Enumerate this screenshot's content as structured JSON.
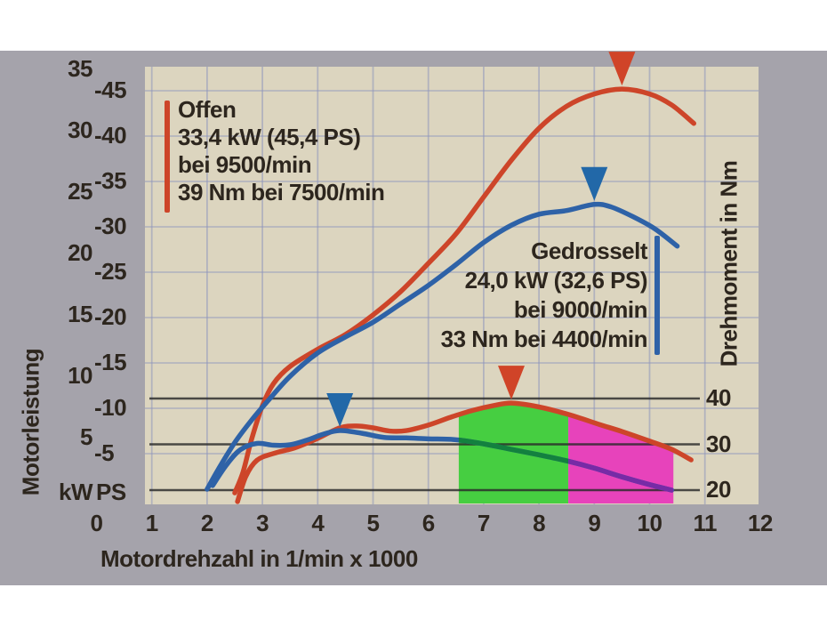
{
  "axes": {
    "x": {
      "title": "Motordrehzahl in 1/min x 1000",
      "ticks": [
        0,
        1,
        2,
        3,
        4,
        5,
        6,
        7,
        8,
        9,
        10,
        11,
        12
      ]
    },
    "left_power": {
      "title": "Motorleistung",
      "kw_unit": "kW",
      "ps_unit": "PS",
      "kw_ticks": [
        35,
        30,
        25,
        20,
        15,
        10,
        5
      ],
      "ps_ticks": [
        "-45",
        "-40",
        "-35",
        "-30",
        "-25",
        "-20",
        "-15",
        "-10",
        "-5"
      ]
    },
    "right_torque": {
      "title": "Drehmoment in Nm",
      "ticks": [
        40,
        30,
        20
      ]
    }
  },
  "legend_offen": {
    "lines": [
      "Offen",
      "33,4 kW (45,4 PS)",
      "bei 9500/min",
      "39 Nm bei 7500/min"
    ],
    "bar_color": "#cd4529"
  },
  "legend_gedrosselt": {
    "lines": [
      "Gedrosselt",
      "24,0 kW (32,6 PS)",
      "bei 9000/min",
      "33 Nm bei 4400/min"
    ],
    "bar_color": "#2e62a7"
  },
  "colors": {
    "curve_offen": "#cd4529",
    "curve_gedrosselt": "#2e62a7",
    "torque_over_green": "#13813f",
    "torque_over_magenta": "#772ba6",
    "band_green": "#46ce41",
    "band_magenta": "#e743bb",
    "photo_bg": "#a5a3ab",
    "plot_bg": "#dcd5bf",
    "grid": "#8e96bd",
    "line_black": "#2a2a2a",
    "marker_red": "#d04428",
    "marker_blue": "#2268a8",
    "text": "#2d261e"
  },
  "chart_data": {
    "type": "line",
    "xlabel": "Motordrehzahl in 1/min x 1000",
    "x_range": [
      0,
      12
    ],
    "left_axis": {
      "label": "Motorleistung",
      "units": [
        "kW",
        "PS"
      ],
      "kw_range": [
        0,
        35
      ],
      "ps_range": [
        0,
        45
      ]
    },
    "right_axis": {
      "label": "Drehmoment in Nm",
      "nm_ticks": [
        40,
        30,
        20
      ]
    },
    "grid": true,
    "series": [
      {
        "name": "Offen Leistung",
        "axis": "kW",
        "color": "#cd4529",
        "points": [
          [
            2.5,
            0.5
          ],
          [
            2.65,
            2.2
          ],
          [
            2.8,
            4.8
          ],
          [
            3.0,
            7.6
          ],
          [
            3.2,
            9.4
          ],
          [
            3.5,
            10.8
          ],
          [
            4.0,
            12.2
          ],
          [
            4.5,
            13.4
          ],
          [
            5.0,
            15.0
          ],
          [
            5.5,
            16.9
          ],
          [
            6.0,
            19.2
          ],
          [
            6.5,
            21.6
          ],
          [
            7.0,
            24.6
          ],
          [
            7.5,
            27.6
          ],
          [
            8.0,
            30.2
          ],
          [
            8.5,
            32.0
          ],
          [
            9.0,
            33.0
          ],
          [
            9.5,
            33.4
          ],
          [
            10.0,
            33.0
          ],
          [
            10.4,
            32.1
          ],
          [
            10.8,
            30.6
          ]
        ]
      },
      {
        "name": "Gedrosselt Leistung",
        "axis": "kW",
        "color": "#2e62a7",
        "points": [
          [
            2.0,
            0.8
          ],
          [
            2.2,
            2.4
          ],
          [
            2.5,
            4.6
          ],
          [
            2.8,
            6.4
          ],
          [
            3.1,
            8.0
          ],
          [
            3.5,
            10.0
          ],
          [
            4.0,
            11.9
          ],
          [
            4.5,
            13.2
          ],
          [
            5.0,
            14.4
          ],
          [
            5.5,
            15.9
          ],
          [
            6.0,
            17.4
          ],
          [
            6.5,
            19.1
          ],
          [
            7.0,
            20.9
          ],
          [
            7.5,
            22.3
          ],
          [
            8.0,
            23.2
          ],
          [
            8.5,
            23.5
          ],
          [
            9.0,
            24.0
          ],
          [
            9.3,
            23.8
          ],
          [
            9.7,
            23.0
          ],
          [
            10.1,
            22.0
          ],
          [
            10.5,
            20.6
          ]
        ]
      },
      {
        "name": "Offen Drehmoment",
        "axis": "Nm",
        "color": "#cd4529",
        "points": [
          [
            2.55,
            17.5
          ],
          [
            2.7,
            23.0
          ],
          [
            2.9,
            26.5
          ],
          [
            3.2,
            28.0
          ],
          [
            3.6,
            29.3
          ],
          [
            4.0,
            31.3
          ],
          [
            4.4,
            33.6
          ],
          [
            4.7,
            34.0
          ],
          [
            5.0,
            33.6
          ],
          [
            5.3,
            32.9
          ],
          [
            5.6,
            33.0
          ],
          [
            6.0,
            34.2
          ],
          [
            6.4,
            35.9
          ],
          [
            6.8,
            37.4
          ],
          [
            7.2,
            38.5
          ],
          [
            7.5,
            39.0
          ],
          [
            7.9,
            38.4
          ],
          [
            8.3,
            37.3
          ],
          [
            8.7,
            35.9
          ],
          [
            9.1,
            34.3
          ],
          [
            9.5,
            32.8
          ],
          [
            10.0,
            30.7
          ],
          [
            10.4,
            28.9
          ],
          [
            10.75,
            26.6
          ]
        ]
      },
      {
        "name": "Gedrosselt Drehmoment",
        "axis": "Nm",
        "color": "#2e62a7",
        "points": [
          [
            2.1,
            21.0
          ],
          [
            2.35,
            25.5
          ],
          [
            2.6,
            28.8
          ],
          [
            2.9,
            30.2
          ],
          [
            3.2,
            29.8
          ],
          [
            3.5,
            29.9
          ],
          [
            3.8,
            30.9
          ],
          [
            4.1,
            32.2
          ],
          [
            4.4,
            33.0
          ],
          [
            4.8,
            32.4
          ],
          [
            5.2,
            31.5
          ],
          [
            5.6,
            31.4
          ],
          [
            6.0,
            31.2
          ],
          [
            6.5,
            31.0
          ],
          [
            7.0,
            30.1
          ],
          [
            7.5,
            28.9
          ],
          [
            8.0,
            27.7
          ],
          [
            8.5,
            26.4
          ],
          [
            9.0,
            24.8
          ],
          [
            9.5,
            22.9
          ],
          [
            10.0,
            21.2
          ],
          [
            10.4,
            20.0
          ]
        ]
      }
    ],
    "peak_markers": [
      {
        "label": "offen-power-peak",
        "shape": "triangle-down",
        "color": "#d04428",
        "rpm": 9.5,
        "axis": "kW",
        "value": 33.4
      },
      {
        "label": "gedrosselt-power-peak",
        "shape": "triangle-down",
        "color": "#2268a8",
        "rpm": 9.0,
        "axis": "kW",
        "value": 24.0
      },
      {
        "label": "offen-torque-peak",
        "shape": "triangle-down",
        "color": "#d04428",
        "rpm": 7.5,
        "axis": "Nm",
        "value": 39
      },
      {
        "label": "gedrosselt-torque-peak",
        "shape": "triangle-down",
        "color": "#2268a8",
        "rpm": 4.4,
        "axis": "Nm",
        "value": 33
      }
    ],
    "bands": [
      {
        "label": "green-band",
        "color": "#46ce41",
        "from_rpm": 6.55,
        "to_rpm": 8.53,
        "under_series": "Offen Drehmoment"
      },
      {
        "label": "magenta-band",
        "color": "#e743bb",
        "from_rpm": 8.53,
        "to_rpm": 10.43,
        "under_series": "Offen Drehmoment"
      }
    ],
    "torque_reference_lines_nm": [
      40,
      30,
      20
    ],
    "annotations": [
      "Offen 33,4 kW (45,4 PS) bei 9500/min, 39 Nm bei 7500/min",
      "Gedrosselt 24,0 kW (32,6 PS) bei 9000/min, 33 Nm bei 4400/min"
    ]
  }
}
